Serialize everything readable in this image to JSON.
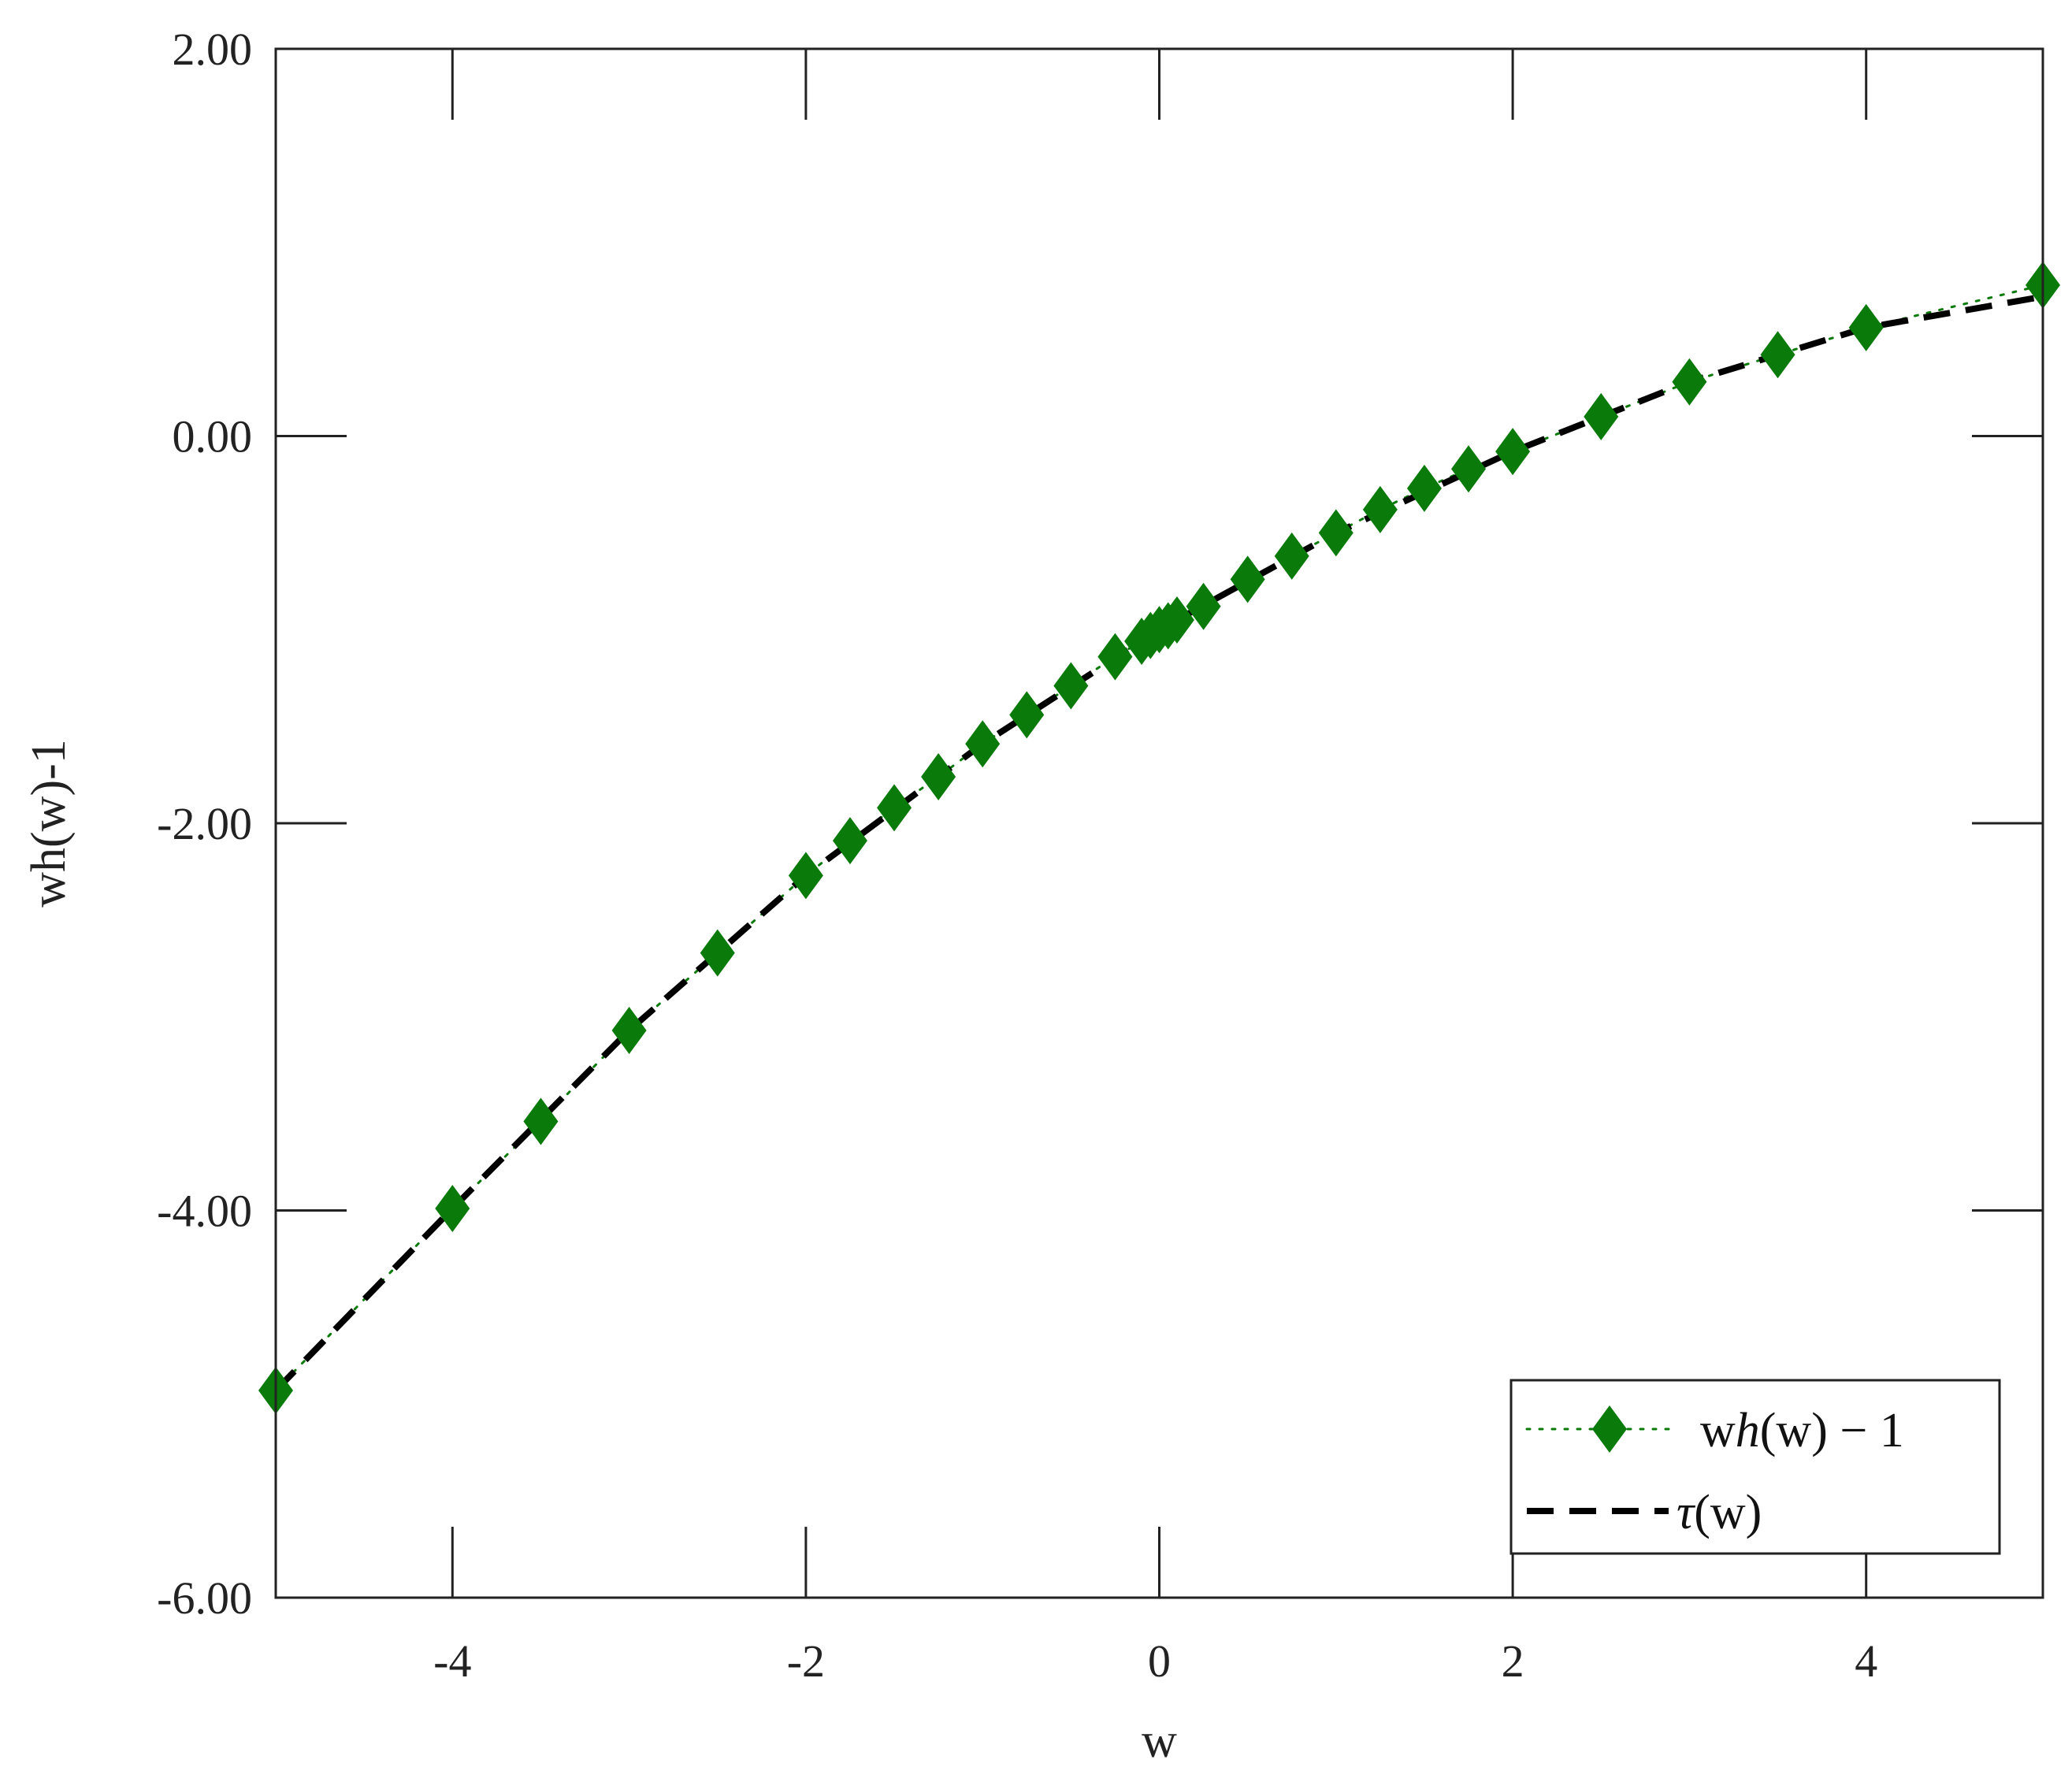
{
  "chart_data": {
    "type": "line",
    "xlabel": "w",
    "ylabel": "wh(w)-1",
    "xlim": [
      -5,
      5
    ],
    "ylim": [
      -6,
      2
    ],
    "x_ticks": [
      -4,
      -2,
      0,
      2,
      4
    ],
    "x_tick_labels": [
      "-4",
      "-2",
      "0",
      "2",
      "4"
    ],
    "y_ticks": [
      -6,
      -4,
      -2,
      0,
      2
    ],
    "y_tick_labels": [
      "-6.00",
      "-4.00",
      "-2.00",
      "0.00",
      "2.00"
    ],
    "grid": false,
    "legend_position": "bottom-right",
    "series": [
      {
        "name": "wh(w) − 1",
        "style": "dotted-diamond",
        "color": "#0a7a0a",
        "x": [
          -5,
          -4,
          -3.5,
          -3,
          -2.5,
          -2,
          -1.75,
          -1.5,
          -1.25,
          -1,
          -0.75,
          -0.5,
          -0.25,
          -0.1,
          -0.05,
          0,
          0.05,
          0.1,
          0.25,
          0.5,
          0.75,
          1,
          1.25,
          1.5,
          1.75,
          2,
          2.5,
          3,
          3.5,
          4,
          5
        ],
        "y": [
          -4.93,
          -3.99,
          -3.54,
          -3.07,
          -2.67,
          -2.27,
          -2.09,
          -1.92,
          -1.76,
          -1.59,
          -1.44,
          -1.29,
          -1.14,
          -1.06,
          -1.03,
          -1.0,
          -0.98,
          -0.95,
          -0.88,
          -0.74,
          -0.62,
          -0.5,
          -0.38,
          -0.27,
          -0.17,
          -0.08,
          0.1,
          0.28,
          0.42,
          0.56,
          0.78
        ]
      },
      {
        "name": "τ(w)",
        "style": "dashed",
        "color": "#000000",
        "x": [
          -5,
          -4,
          -3,
          -2,
          -1,
          0,
          1,
          2,
          3,
          4,
          5
        ],
        "y": [
          -4.93,
          -3.99,
          -3.07,
          -2.27,
          -1.59,
          -1.0,
          -0.5,
          -0.08,
          0.28,
          0.56,
          0.72
        ]
      }
    ],
    "legend": {
      "entry1_prefix": "w",
      "entry1_italic": "h",
      "entry1_suffix": "(w) − 1",
      "entry2_italic": "τ",
      "entry2_suffix": "(w)"
    }
  }
}
